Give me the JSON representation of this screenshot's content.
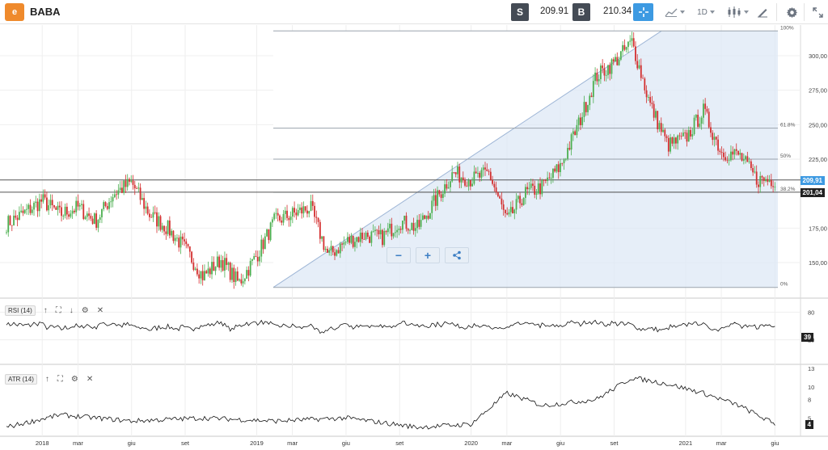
{
  "toolbar": {
    "logo_text": "e",
    "symbol": "BABA",
    "sell_label": "S",
    "sell_price": "209.91",
    "buy_label": "B",
    "buy_price": "210.34",
    "timeframe": "1D",
    "icons": [
      "crosshair-icon",
      "chart-type-icon",
      "candles-icon",
      "draw-icon",
      "gear-icon",
      "expand-icon"
    ]
  },
  "price_axis": {
    "ticks": [
      "300,00",
      "275,00",
      "250,00",
      "225,00",
      "175,00",
      "150,00"
    ],
    "current_price": "209,91",
    "line_price": "201,04"
  },
  "fibonacci": {
    "levels": [
      {
        "label": "100%",
        "price": 318
      },
      {
        "label": "61.8%",
        "price": 247.5
      },
      {
        "label": "50%",
        "price": 225
      },
      {
        "label": "38.2%",
        "price": 201
      },
      {
        "label": "0%",
        "price": 132
      }
    ]
  },
  "time_axis": [
    "2018",
    "mar",
    "giu",
    "set",
    "2019",
    "mar",
    "giu",
    "set",
    "2020",
    "mar",
    "giu",
    "set",
    "2021",
    "mar",
    "giu"
  ],
  "rsi": {
    "label": "RSI (14)",
    "ticks": [
      "80",
      "20"
    ],
    "current": "39"
  },
  "atr": {
    "label": "ATR (14)",
    "ticks": [
      "13",
      "10",
      "8",
      "5"
    ],
    "current": "4"
  },
  "zoom": {
    "minus": "−",
    "plus": "+"
  },
  "colors": {
    "up": "#4caf50",
    "down": "#d32f2f",
    "accent": "#3d9ae2",
    "fib_fill": "#dce8f6",
    "brand": "#ef8a2c"
  },
  "chart_data": {
    "type": "candlestick",
    "symbol": "BABA",
    "x_range": [
      "2017-11",
      "2021-06"
    ],
    "ylim": [
      125,
      320
    ],
    "anchors": [
      {
        "date": "2017-11",
        "close": 178
      },
      {
        "date": "2017-12",
        "close": 186
      },
      {
        "date": "2018-01",
        "close": 195
      },
      {
        "date": "2018-02",
        "close": 185
      },
      {
        "date": "2018-03",
        "close": 190
      },
      {
        "date": "2018-04",
        "close": 180
      },
      {
        "date": "2018-05",
        "close": 200
      },
      {
        "date": "2018-06",
        "close": 208
      },
      {
        "date": "2018-07",
        "close": 185
      },
      {
        "date": "2018-08",
        "close": 175
      },
      {
        "date": "2018-09",
        "close": 160
      },
      {
        "date": "2018-10",
        "close": 140
      },
      {
        "date": "2018-11",
        "close": 152
      },
      {
        "date": "2018-12",
        "close": 135
      },
      {
        "date": "2019-01",
        "close": 155
      },
      {
        "date": "2019-02",
        "close": 180
      },
      {
        "date": "2019-03",
        "close": 185
      },
      {
        "date": "2019-04",
        "close": 190
      },
      {
        "date": "2019-05",
        "close": 155
      },
      {
        "date": "2019-06",
        "close": 165
      },
      {
        "date": "2019-07",
        "close": 170
      },
      {
        "date": "2019-08",
        "close": 168
      },
      {
        "date": "2019-09",
        "close": 180
      },
      {
        "date": "2019-10",
        "close": 175
      },
      {
        "date": "2019-11",
        "close": 195
      },
      {
        "date": "2019-12",
        "close": 215
      },
      {
        "date": "2020-01",
        "close": 210
      },
      {
        "date": "2020-02",
        "close": 215
      },
      {
        "date": "2020-03",
        "close": 180
      },
      {
        "date": "2020-04",
        "close": 200
      },
      {
        "date": "2020-05",
        "close": 205
      },
      {
        "date": "2020-06",
        "close": 220
      },
      {
        "date": "2020-07",
        "close": 250
      },
      {
        "date": "2020-08",
        "close": 285
      },
      {
        "date": "2020-09",
        "close": 295
      },
      {
        "date": "2020-10",
        "close": 310
      },
      {
        "date": "2020-11",
        "close": 265
      },
      {
        "date": "2020-12",
        "close": 235
      },
      {
        "date": "2021-01",
        "close": 240
      },
      {
        "date": "2021-02",
        "close": 260
      },
      {
        "date": "2021-03",
        "close": 230
      },
      {
        "date": "2021-04",
        "close": 228
      },
      {
        "date": "2021-05",
        "close": 210
      },
      {
        "date": "2021-06",
        "close": 210
      }
    ],
    "horizontal_lines": [
      209.91,
      201.04
    ],
    "rsi_range": [
      0,
      100
    ],
    "atr_anchors": [
      {
        "date": "2017-11",
        "v": 3.5
      },
      {
        "date": "2018-02",
        "v": 5.5
      },
      {
        "date": "2018-06",
        "v": 4.5
      },
      {
        "date": "2018-10",
        "v": 5.0
      },
      {
        "date": "2019-02",
        "v": 4.5
      },
      {
        "date": "2019-06",
        "v": 5.0
      },
      {
        "date": "2019-10",
        "v": 3.5
      },
      {
        "date": "2020-01",
        "v": 4.0
      },
      {
        "date": "2020-03",
        "v": 9.0
      },
      {
        "date": "2020-05",
        "v": 7.0
      },
      {
        "date": "2020-08",
        "v": 8.0
      },
      {
        "date": "2020-10",
        "v": 11.5
      },
      {
        "date": "2020-12",
        "v": 10.5
      },
      {
        "date": "2021-02",
        "v": 9.0
      },
      {
        "date": "2021-04",
        "v": 7.0
      },
      {
        "date": "2021-06",
        "v": 4.0
      }
    ]
  }
}
